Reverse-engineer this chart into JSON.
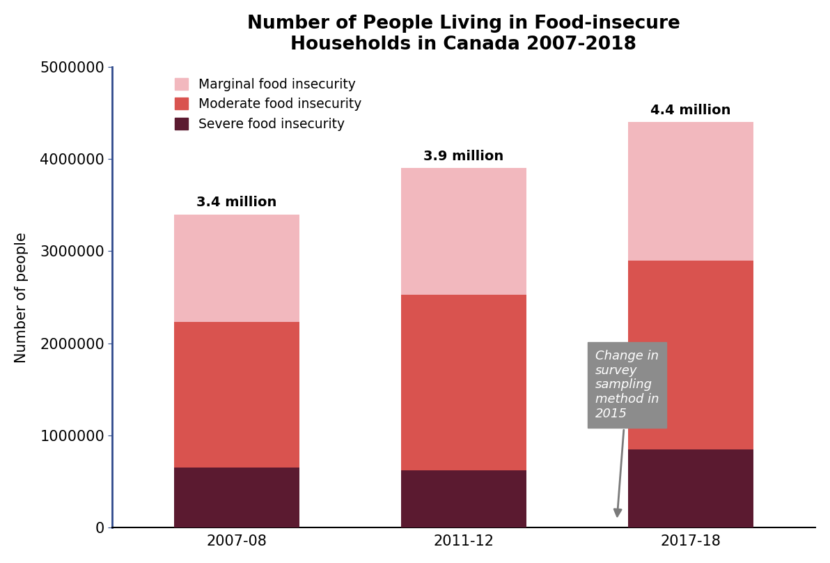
{
  "categories": [
    "2007-08",
    "2011-12",
    "2017-18"
  ],
  "severe": [
    650000,
    625000,
    850000
  ],
  "moderate": [
    1580000,
    1900000,
    2050000
  ],
  "marginal": [
    1170000,
    1375000,
    1500000
  ],
  "totals_label": [
    "3.4 million",
    "3.9 million",
    "4.4 million"
  ],
  "color_marginal": "#f2b8be",
  "color_moderate": "#d9534f",
  "color_severe": "#5b1a30",
  "title_line1": "Number of People Living in Food-insecure",
  "title_line2": "Households in Canada 2007-2018",
  "ylabel": "Number of people",
  "ylim": [
    0,
    5000000
  ],
  "yticks": [
    0,
    1000000,
    2000000,
    3000000,
    4000000,
    5000000
  ],
  "legend_marginal": "Marginal food insecurity",
  "legend_moderate": "Moderate food insecurity",
  "legend_severe": "Severe food insecurity",
  "annotation_text": "Change in\nsurvey\nsampling\nmethod in\n2015",
  "spine_left_color": "#2f4a8c",
  "background_color": "#ffffff",
  "bar_width": 0.55,
  "xlim": [
    -0.55,
    2.55
  ]
}
